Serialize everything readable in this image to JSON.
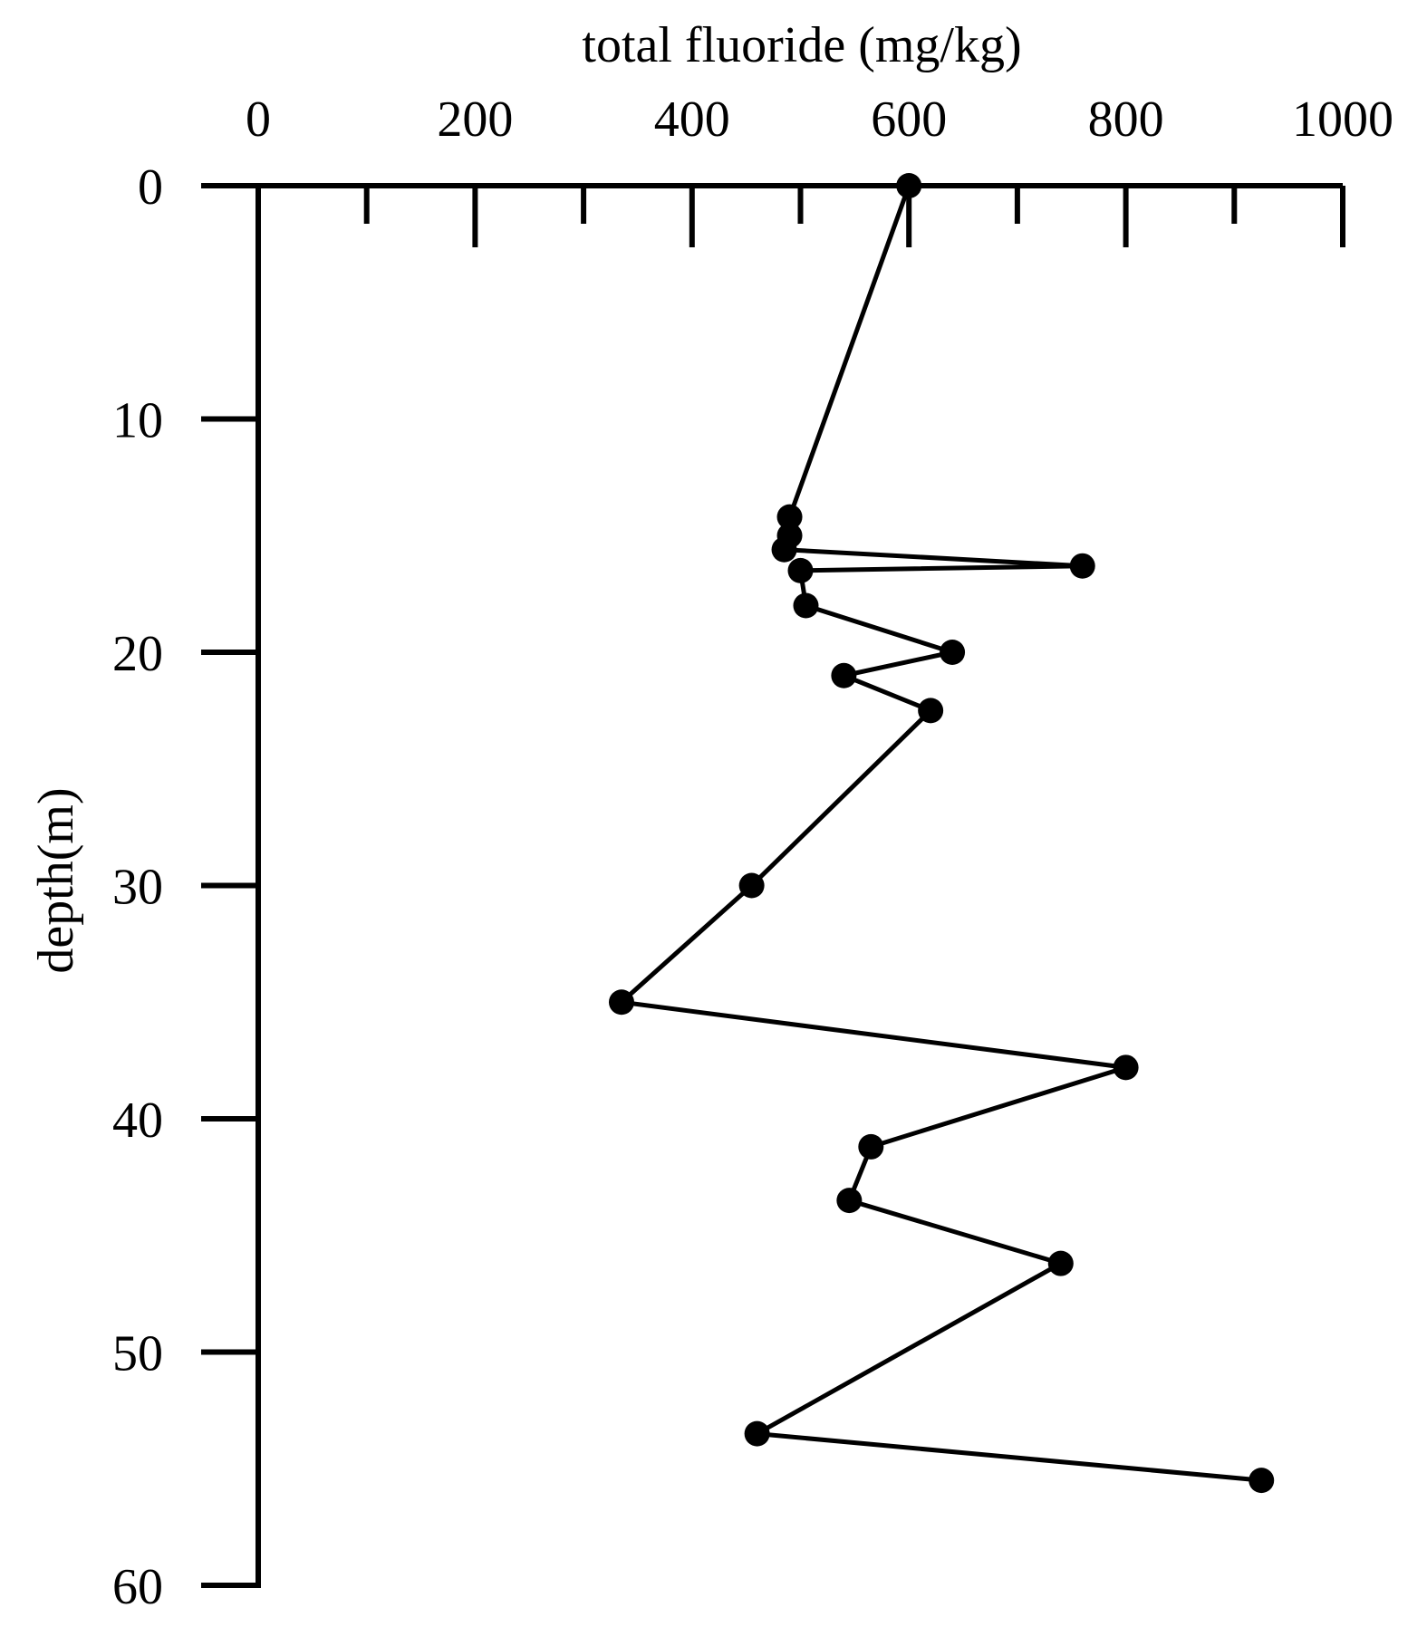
{
  "chart_data": {
    "type": "line",
    "xlabel": "total fluoride (mg/kg)",
    "ylabel": "depth(m)",
    "x_axis_position": "top",
    "y_axis_inverted": true,
    "xlim": [
      0,
      1000
    ],
    "ylim": [
      0,
      60
    ],
    "x_ticks": [
      0,
      200,
      400,
      600,
      800,
      1000
    ],
    "x_tick_labels": [
      "0",
      "200",
      "400",
      "600",
      "800",
      "1000"
    ],
    "x_minor_ticks": [
      100,
      300,
      500,
      700,
      900
    ],
    "y_ticks": [
      0,
      10,
      20,
      30,
      40,
      50,
      60
    ],
    "y_tick_labels": [
      "0",
      "10",
      "20",
      "30",
      "40",
      "50",
      "60"
    ],
    "grid": false,
    "legend": "none",
    "series": [
      {
        "marker": "circle",
        "color": "#000000",
        "points": [
          {
            "x": 600,
            "y": 0
          },
          {
            "x": 490,
            "y": 14.2
          },
          {
            "x": 490,
            "y": 15.0
          },
          {
            "x": 485,
            "y": 15.6
          },
          {
            "x": 760,
            "y": 16.3
          },
          {
            "x": 500,
            "y": 16.5
          },
          {
            "x": 505,
            "y": 18.0
          },
          {
            "x": 640,
            "y": 20.0
          },
          {
            "x": 540,
            "y": 21.0
          },
          {
            "x": 620,
            "y": 22.5
          },
          {
            "x": 455,
            "y": 30.0
          },
          {
            "x": 335,
            "y": 35.0
          },
          {
            "x": 800,
            "y": 37.8
          },
          {
            "x": 565,
            "y": 41.2
          },
          {
            "x": 545,
            "y": 43.5
          },
          {
            "x": 740,
            "y": 46.2
          },
          {
            "x": 460,
            "y": 53.5
          },
          {
            "x": 925,
            "y": 55.5
          }
        ]
      }
    ]
  }
}
